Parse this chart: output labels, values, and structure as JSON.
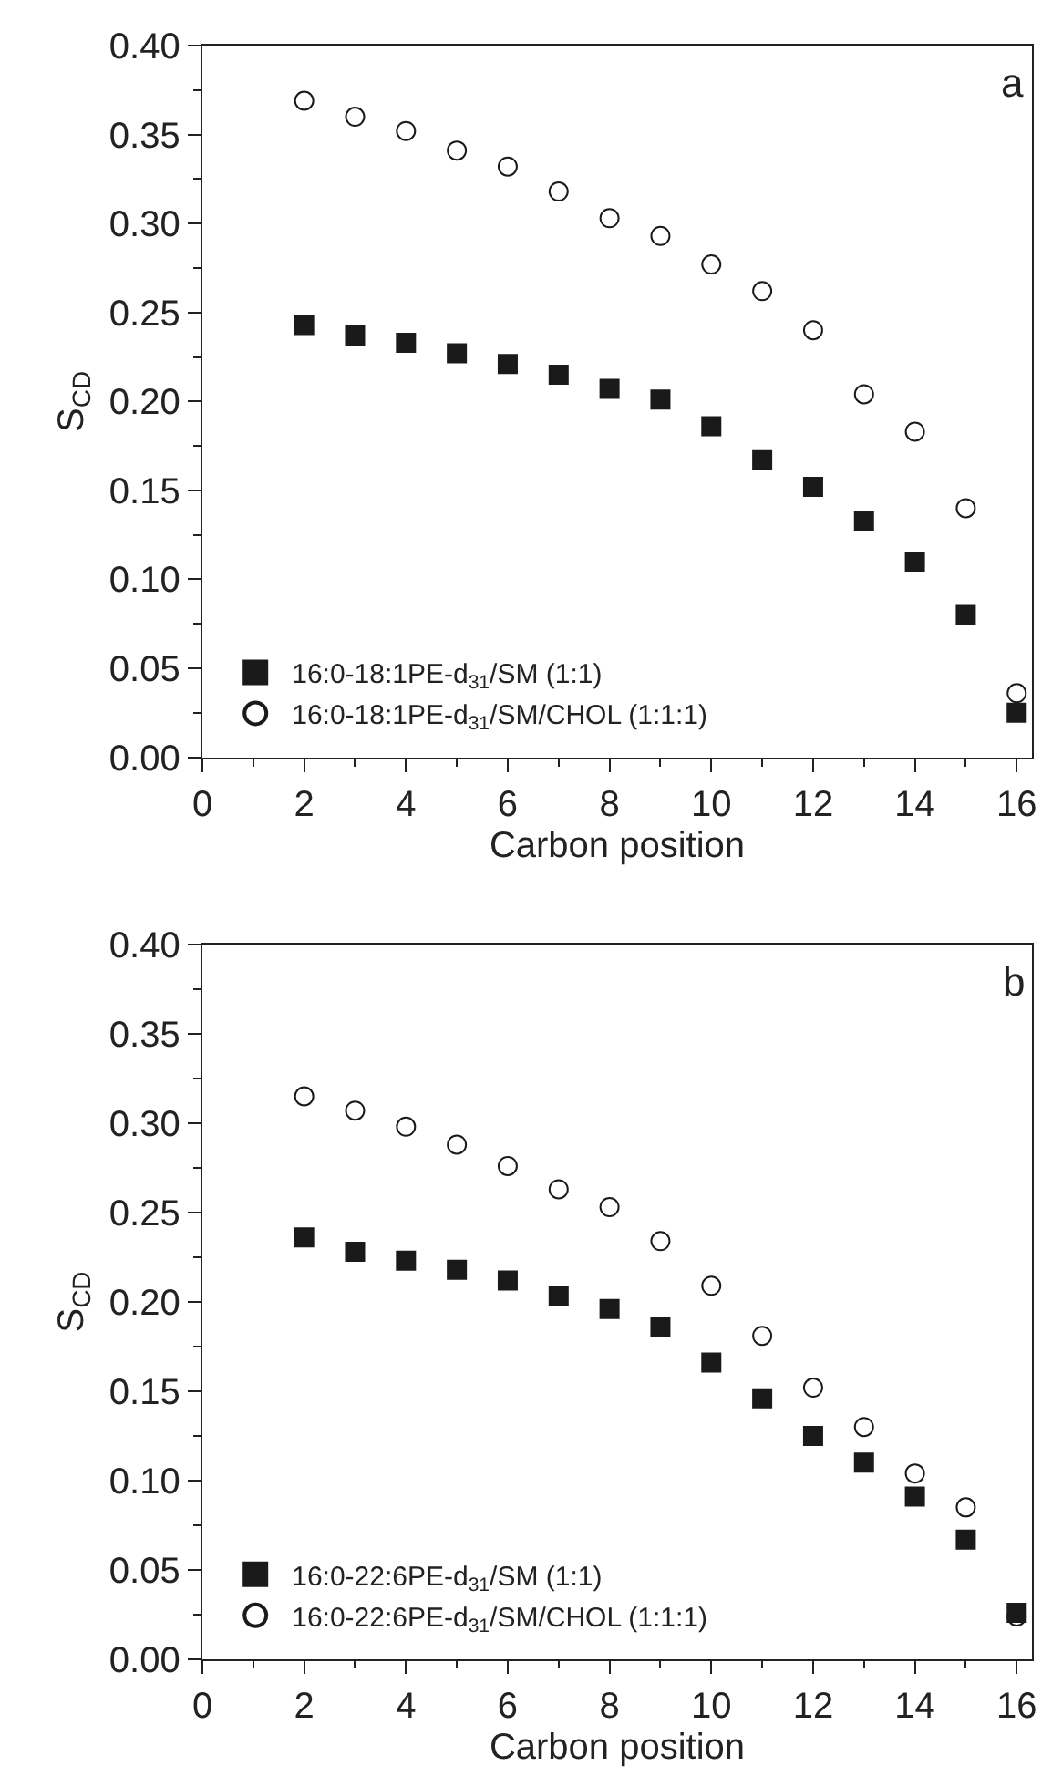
{
  "chart_data": [
    {
      "type": "scatter",
      "xlabel": "Carbon position",
      "ylabel": "S$_{CD}$",
      "annotations": [
        "a"
      ],
      "xlim": [
        0,
        16.3
      ],
      "xticks": [
        0,
        2,
        4,
        6,
        8,
        10,
        12,
        14,
        16
      ],
      "ylim": [
        0,
        0.4
      ],
      "yticks": [
        {
          "value": 0,
          "label": "0.00"
        },
        {
          "value": 0.05,
          "label": "0.05"
        },
        {
          "value": 0.1,
          "label": "0.10"
        },
        {
          "value": 0.15,
          "label": "0.15"
        },
        {
          "value": 0.2,
          "label": "0.20"
        },
        {
          "value": 0.25,
          "label": "0.25"
        },
        {
          "value": 0.3,
          "label": "0.30"
        },
        {
          "value": 0.35,
          "label": "0.35"
        },
        {
          "value": 0.4,
          "label": "0.40"
        }
      ],
      "legend": "bottom left",
      "x": [
        2,
        3,
        4,
        5,
        6,
        7,
        8,
        9,
        10,
        11,
        12,
        13,
        14,
        15,
        16
      ],
      "series": [
        {
          "name": "16:0-18:1PE-d$_{31}$/SM (1:1)",
          "color": "#1a1a1a",
          "marker": "square",
          "values": [
            0.243,
            0.237,
            0.233,
            0.227,
            0.221,
            0.215,
            0.207,
            0.201,
            0.186,
            0.167,
            0.152,
            0.133,
            0.11,
            0.08,
            0.025
          ]
        },
        {
          "name": "16:0-18:1PE-d$_{31}$/SM/CHOL (1:1:1)",
          "color": "#1a1a1a",
          "marker": "circle",
          "values": [
            0.369,
            0.36,
            0.352,
            0.341,
            0.332,
            0.318,
            0.303,
            0.293,
            0.277,
            0.262,
            0.24,
            0.204,
            0.183,
            0.14,
            0.036
          ]
        }
      ]
    },
    {
      "type": "scatter",
      "xlabel": "Carbon position",
      "ylabel": "S$_{CD}$",
      "annotations": [
        "b"
      ],
      "xlim": [
        0,
        16.3
      ],
      "xticks": [
        0,
        2,
        4,
        6,
        8,
        10,
        12,
        14,
        16
      ],
      "ylim": [
        0,
        0.4
      ],
      "yticks": [
        {
          "value": 0,
          "label": "0.00"
        },
        {
          "value": 0.05,
          "label": "0.05"
        },
        {
          "value": 0.1,
          "label": "0.10"
        },
        {
          "value": 0.15,
          "label": "0.15"
        },
        {
          "value": 0.2,
          "label": "0.20"
        },
        {
          "value": 0.25,
          "label": "0.25"
        },
        {
          "value": 0.3,
          "label": "0.30"
        },
        {
          "value": 0.35,
          "label": "0.35"
        },
        {
          "value": 0.4,
          "label": "0.40"
        }
      ],
      "legend": "bottom left",
      "x": [
        2,
        3,
        4,
        5,
        6,
        7,
        8,
        9,
        10,
        11,
        12,
        13,
        14,
        15,
        16
      ],
      "series": [
        {
          "name": "16:0-22:6PE-d$_{31}$/SM (1:1)",
          "color": "#1a1a1a",
          "marker": "square",
          "values": [
            0.236,
            0.228,
            0.223,
            0.218,
            0.212,
            0.203,
            0.196,
            0.186,
            0.166,
            0.146,
            0.125,
            0.11,
            0.091,
            0.067,
            0.026
          ]
        },
        {
          "name": "16:0-22:6PE-d$_{31}$/SM/CHOL (1:1:1)",
          "color": "#1a1a1a",
          "marker": "circle",
          "values": [
            0.315,
            0.307,
            0.298,
            0.288,
            0.276,
            0.263,
            0.253,
            0.234,
            0.209,
            0.181,
            0.152,
            0.13,
            0.104,
            0.085,
            0.024
          ]
        }
      ]
    }
  ]
}
